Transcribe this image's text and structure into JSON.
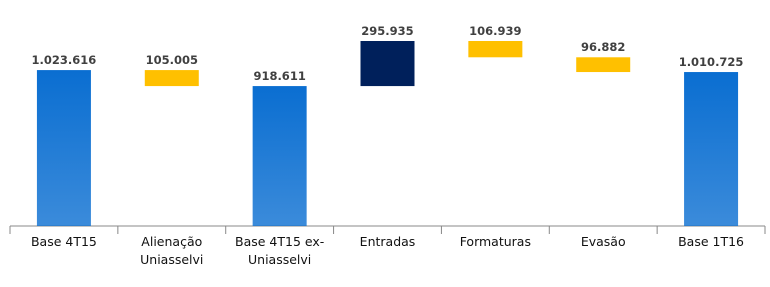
{
  "chart_data": {
    "type": "waterfall",
    "categories": [
      "Base 4T15",
      "Alienação Uniasselvi",
      "Base 4T15 ex-Uniasselvi",
      "Entradas",
      "Formaturas",
      "Evasão",
      "Base 1T16"
    ],
    "values": [
      1023616,
      105005,
      918611,
      295935,
      106939,
      96882,
      1010725
    ],
    "value_labels": [
      "1.023.616",
      "105.005",
      "918.611",
      "295.935",
      "106.939",
      "96.882",
      "1.010.725"
    ],
    "measure": [
      "total",
      "decrease",
      "total",
      "increase",
      "decrease",
      "decrease",
      "total"
    ],
    "colors": {
      "total": "#0a6ed1",
      "increase": "#00205b",
      "decrease": "#ffc000"
    }
  }
}
